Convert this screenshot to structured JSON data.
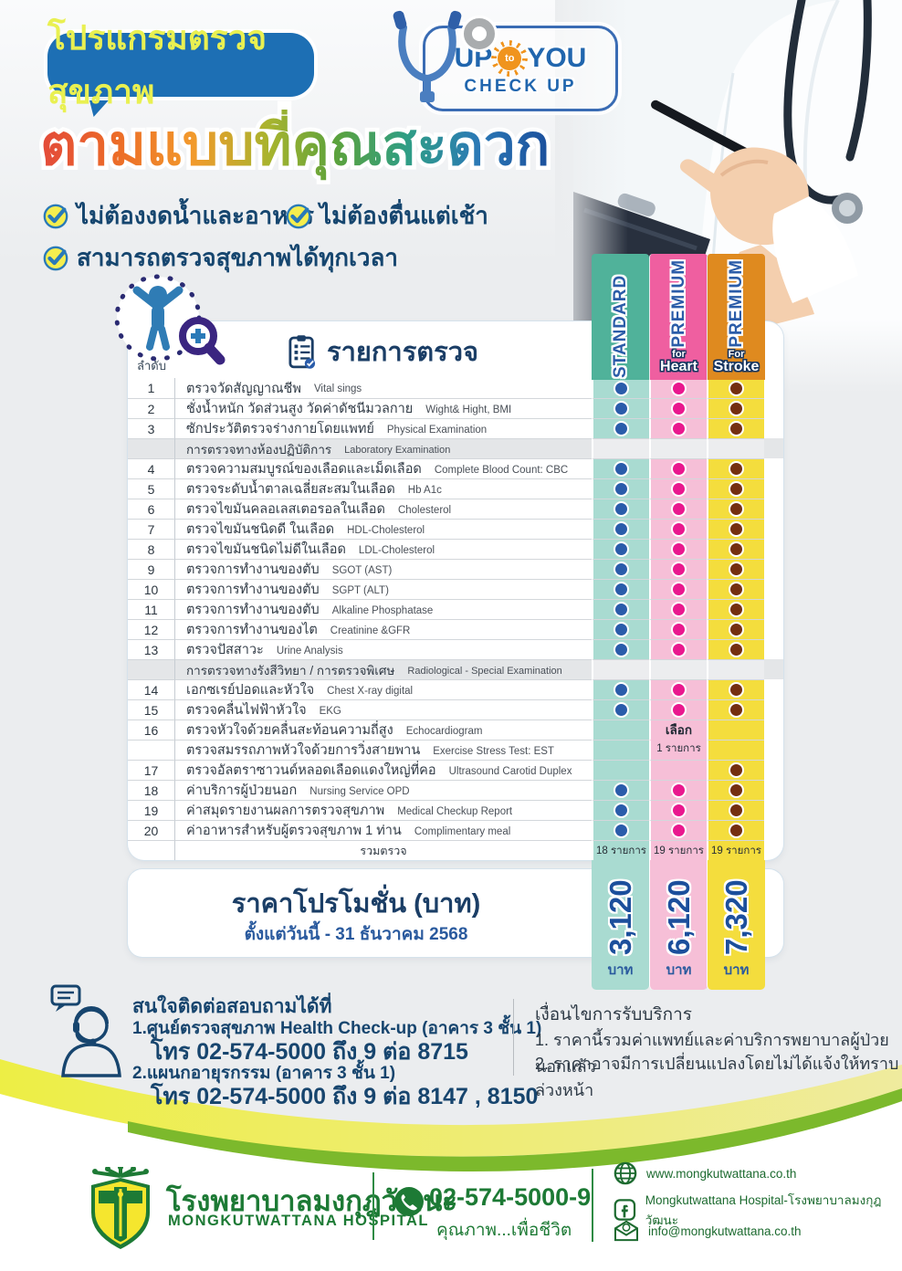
{
  "header": {
    "program_badge": "โปรแกรมตรวจสุขภาพ",
    "logo": {
      "up": "UP",
      "to": "to",
      "you": "YOU",
      "checkup": "CHECK UP"
    },
    "title": "ตามแบบที่คุณสะดวก",
    "benefits": [
      "ไม่ต้องงดน้ำและอาหาร",
      "ไม่ต้องตื่นแต่เช้า",
      "สามารถตรวจสุขภาพได้ทุกเวลา"
    ]
  },
  "table": {
    "index_header": "ลำดับ",
    "title": "รายการตรวจ",
    "columns": [
      {
        "label": "STANDARD",
        "sub1": "",
        "sub2": ""
      },
      {
        "label": "PREMIUM",
        "sub1": "for",
        "sub2": "Heart"
      },
      {
        "label": "PREMIUM",
        "sub1": "For",
        "sub2": "Stroke"
      }
    ],
    "choose_note": {
      "line1": "เลือก",
      "line2": "1 รายการ"
    },
    "rows": [
      {
        "type": "item",
        "no": "1",
        "th": "ตรวจวัดสัญญาณชีพ",
        "en": "Vital sings",
        "dots": [
          1,
          1,
          1
        ]
      },
      {
        "type": "item",
        "no": "2",
        "th": "ชั่งน้ำหนัก วัดส่วนสูง วัดค่าดัชนีมวลกาย",
        "en": "Wight& Hight, BMI",
        "dots": [
          1,
          1,
          1
        ]
      },
      {
        "type": "item",
        "no": "3",
        "th": "ซักประวัติตรวจร่างกายโดยแพทย์",
        "en": "Physical Examination",
        "dots": [
          1,
          1,
          1
        ]
      },
      {
        "type": "section",
        "th": "การตรวจทางห้องปฏิบัติการ",
        "en": "Laboratory Examination"
      },
      {
        "type": "item",
        "no": "4",
        "th": "ตรวจความสมบูรณ์ของเลือดและเม็ดเลือด",
        "en": "Complete Blood Count: CBC",
        "dots": [
          1,
          1,
          1
        ]
      },
      {
        "type": "item",
        "no": "5",
        "th": "ตรวจระดับน้ำตาลเฉลี่ยสะสมในเลือด",
        "en": "Hb A1c",
        "dots": [
          1,
          1,
          1
        ]
      },
      {
        "type": "item",
        "no": "6",
        "th": "ตรวจไขมันคลอเลสเตอรอลในเลือด",
        "en": "Cholesterol",
        "dots": [
          1,
          1,
          1
        ]
      },
      {
        "type": "item",
        "no": "7",
        "th": "ตรวจไขมันชนิดดี ในเลือด",
        "en": "HDL-Cholesterol",
        "dots": [
          1,
          1,
          1
        ]
      },
      {
        "type": "item",
        "no": "8",
        "th": "ตรวจไขมันชนิดไม่ดีในเลือด",
        "en": "LDL-Cholesterol",
        "dots": [
          1,
          1,
          1
        ]
      },
      {
        "type": "item",
        "no": "9",
        "th": "ตรวจการทำงานของตับ",
        "en": "SGOT (AST)",
        "dots": [
          1,
          1,
          1
        ]
      },
      {
        "type": "item",
        "no": "10",
        "th": "ตรวจการทำงานของตับ",
        "en": "SGPT (ALT)",
        "dots": [
          1,
          1,
          1
        ]
      },
      {
        "type": "item",
        "no": "11",
        "th": "ตรวจการทำงานของตับ",
        "en": "Alkaline Phosphatase",
        "dots": [
          1,
          1,
          1
        ]
      },
      {
        "type": "item",
        "no": "12",
        "th": "ตรวจการทำงานของไต",
        "en": "Creatinine &GFR",
        "dots": [
          1,
          1,
          1
        ]
      },
      {
        "type": "item",
        "no": "13",
        "th": "ตรวจปัสสาวะ",
        "en": "Urine Analysis",
        "dots": [
          1,
          1,
          1
        ]
      },
      {
        "type": "section",
        "th": "การตรวจทางรังสีวิทยา / การตรวจพิเศษ",
        "en": "Radiological - Special Examination"
      },
      {
        "type": "item",
        "no": "14",
        "th": "เอกซเรย์ปอดและหัวใจ",
        "en": "Chest X-ray digital",
        "dots": [
          1,
          1,
          1
        ]
      },
      {
        "type": "item",
        "no": "15",
        "th": "ตรวจคลื่นไฟฟ้าหัวใจ",
        "en": "EKG",
        "dots": [
          1,
          1,
          1
        ]
      },
      {
        "type": "item",
        "no": "16",
        "th": "ตรวจหัวใจด้วยคลื่นสะท้อนความถี่สูง",
        "en": "Echocardiogram",
        "dots": [
          0,
          "choose1",
          0
        ]
      },
      {
        "type": "item",
        "no": "",
        "th": "ตรวจสมรรถภาพหัวใจด้วยการวิ่งสายพาน",
        "en": "Exercise Stress Test: EST",
        "dots": [
          0,
          "choose2",
          0
        ]
      },
      {
        "type": "item",
        "no": "17",
        "th": "ตรวจอัลตราซาวนด์หลอดเลือดแดงใหญ่ที่คอ",
        "en": "Ultrasound Carotid Duplex",
        "dots": [
          0,
          0,
          1
        ]
      },
      {
        "type": "item",
        "no": "18",
        "th": "ค่าบริการผู้ป่วยนอก",
        "en": "Nursing Service OPD",
        "dots": [
          1,
          1,
          1
        ]
      },
      {
        "type": "item",
        "no": "19",
        "th": "ค่าสมุดรายงานผลการตรวจสุขภาพ",
        "en": "Medical Checkup Report",
        "dots": [
          1,
          1,
          1
        ]
      },
      {
        "type": "item",
        "no": "20",
        "th": "ค่าอาหารสำหรับผู้ตรวจสุขภาพ 1 ท่าน",
        "en": "Complimentary meal",
        "dots": [
          1,
          1,
          1
        ]
      },
      {
        "type": "sum",
        "label": "รวมตรวจ",
        "values": [
          "18 รายการ",
          "19 รายการ",
          "19 รายการ"
        ]
      }
    ]
  },
  "price": {
    "title": "ราคาโปรโมชั่น (บาท)",
    "period": "ตั้งแต่วันนี้ - 31 ธันวาคม 2568",
    "values": [
      "3,120",
      "6,120",
      "7,320"
    ],
    "currency": "บาท"
  },
  "contact": {
    "heading": "สนใจติดต่อสอบถามได้ที่",
    "line1": "1.ศูนย์ตรวจสุขภาพ Health Check-up (อาคาร 3 ชั้น 1)",
    "tel1": "โทร 02-574-5000 ถึง 9 ต่อ 8715",
    "line2": "2.แผนกอายุรกรรม (อาคาร 3 ชั้น 1)",
    "tel2": "โทร 02-574-5000 ถึง 9 ต่อ 8147 , 8150"
  },
  "conditions": {
    "heading": "เงื่อนไขการรับบริการ",
    "items": [
      "1. ราคานี้รวมค่าแพทย์และค่าบริการพยาบาลผู้ป่วยนอกแล้ว",
      "2. ราคาอาจมีการเปลี่ยนแปลงโดยไม่ได้แจ้งให้ทราบล่วงหน้า"
    ]
  },
  "footer": {
    "hospital_th": "โรงพยาบาลมงกุฎวัฒนะ",
    "hospital_en": "MONGKUTWATTANA HOSPITAL",
    "phone": "02-574-5000-9",
    "tagline": "คุณภาพ...เพื่อชีวิต",
    "website": "www.mongkutwattana.co.th",
    "facebook": "Mongkutwattana Hospital-โรงพยาบาลมงกุฎวัฒนะ",
    "email": "info@mongkutwattana.co.th"
  },
  "colors": {
    "standard": "#50b29a",
    "standard_light": "#a9dbd1",
    "heart": "#ef5fa0",
    "heart_light": "#f6bfd7",
    "stroke": "#df8a1f",
    "stroke_light": "#f4dd3d",
    "dot_standard": "#2a5caa",
    "dot_heart": "#e9188e",
    "dot_stroke": "#742f10",
    "accent_blue": "#1d6fb4",
    "navy": "#17456e",
    "green": "#1d7a35"
  }
}
